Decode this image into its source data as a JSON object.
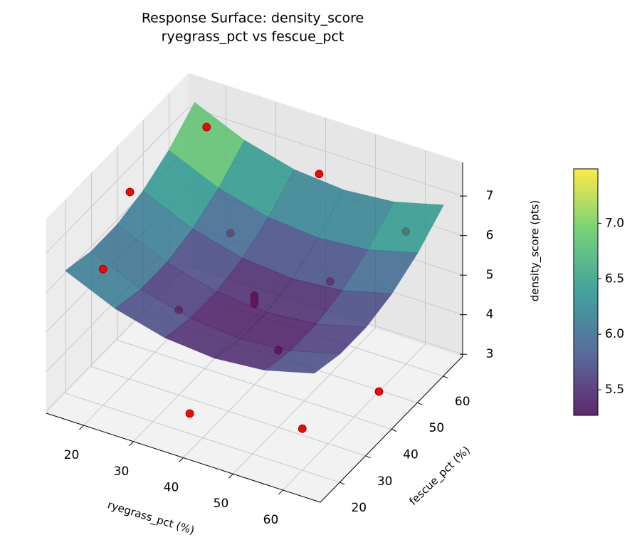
{
  "chart_data": {
    "type": "surface3d",
    "title": "Response Surface: density_score",
    "subtitle": "ryegrass_pct vs fescue_pct",
    "x_label": "ryegrass_pct (%)",
    "y_label": "fescue_pct (%)",
    "z_label": "density_score (pts)",
    "xlim": [
      12.5,
      67.5
    ],
    "ylim": [
      12.5,
      67.5
    ],
    "zlim": [
      2.95,
      7.85
    ],
    "xticks": [
      20,
      30,
      40,
      50,
      60
    ],
    "yticks": [
      20,
      30,
      40,
      50,
      60
    ],
    "zticks": [
      3,
      4,
      5,
      6,
      7
    ],
    "grid": true,
    "surface": {
      "colormap": "viridis",
      "x": [
        15,
        25,
        35,
        45,
        55,
        65
      ],
      "y": [
        15,
        25,
        35,
        45,
        55,
        65
      ],
      "z": [
        [
          6.49,
          5.94,
          5.61,
          5.5,
          5.61,
          5.94
        ],
        [
          6.31,
          5.76,
          5.43,
          5.32,
          5.43,
          5.76
        ],
        [
          6.31,
          5.76,
          5.43,
          5.32,
          5.43,
          5.76
        ],
        [
          6.49,
          5.94,
          5.61,
          5.5,
          5.61,
          5.94
        ],
        [
          6.85,
          6.3,
          5.97,
          5.86,
          5.97,
          6.3
        ],
        [
          7.39,
          6.84,
          6.51,
          6.4,
          6.51,
          6.84
        ]
      ]
    },
    "points": {
      "color": "#ff0000",
      "x": [
        20,
        20,
        60,
        60,
        15,
        65,
        40,
        40,
        40,
        40,
        30,
        50,
        30,
        50,
        40
      ],
      "y": [
        20,
        60,
        20,
        60,
        40,
        40,
        15,
        65,
        40,
        40,
        30,
        50,
        50,
        30,
        40
      ],
      "z": [
        6.4,
        7.3,
        4.0,
        6.3,
        6.8,
        3.8,
        3.9,
        6.6,
        5.0,
        5.2,
        5.1,
        5.3,
        5.7,
        4.9,
        5.1
      ]
    },
    "colorbar": {
      "lim": [
        5.27,
        7.49
      ],
      "ticks": [
        5.5,
        {
          "value": 6.0,
          "label": "6.0"
        },
        6.5,
        {
          "value": 7.0,
          "label": "7.0"
        }
      ]
    }
  }
}
